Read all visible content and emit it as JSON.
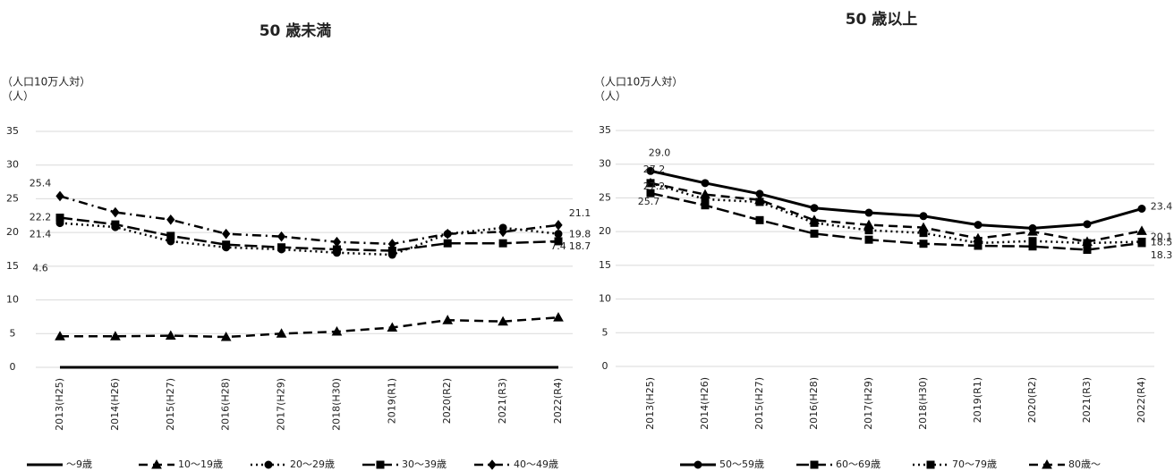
{
  "chart_data": [
    {
      "type": "line",
      "title": "50 歳未満",
      "y_label": [
        "（人口10万人対）",
        "（人）"
      ],
      "categories": [
        "2013(H25)",
        "2014(H26)",
        "2015(H27)",
        "2016(H28)",
        "2017(H29)",
        "2018(H30)",
        "2019(R1)",
        "2020(R2)",
        "2021(R3)",
        "2022(R4)"
      ],
      "ylim": [
        0,
        35
      ],
      "yticks": [
        0,
        5,
        10,
        15,
        20,
        25,
        30,
        35
      ],
      "grid": true,
      "legend": "bottom",
      "series": [
        {
          "name": "〜9歳",
          "color": "#000000",
          "line_style": "solid",
          "marker": "none",
          "values": [
            0,
            0,
            0,
            0,
            0,
            0,
            0,
            0,
            0,
            0
          ]
        },
        {
          "name": "10〜19歳",
          "color": "#000000",
          "line_style": "dashed",
          "marker": "triangle",
          "values": [
            4.6,
            4.6,
            4.7,
            4.5,
            5.0,
            5.3,
            5.9,
            7.0,
            6.8,
            7.4
          ],
          "value_labels": [
            "4.6",
            null,
            null,
            null,
            null,
            null,
            null,
            null,
            null,
            "7.4"
          ]
        },
        {
          "name": "20〜29歳",
          "color": "#000000",
          "line_style": "dotted",
          "marker": "circle",
          "values": [
            21.4,
            20.8,
            18.7,
            17.8,
            17.5,
            17.0,
            16.7,
            19.8,
            20.7,
            19.8
          ],
          "value_labels": [
            "21.4",
            null,
            null,
            null,
            null,
            null,
            null,
            null,
            null,
            "19.8"
          ]
        },
        {
          "name": "30〜39歳",
          "color": "#000000",
          "line_style": "long-dash",
          "marker": "square",
          "values": [
            22.2,
            21.2,
            19.5,
            18.2,
            17.8,
            17.5,
            17.3,
            18.4,
            18.4,
            18.7
          ],
          "value_labels": [
            "22.2",
            null,
            null,
            null,
            null,
            null,
            null,
            null,
            null,
            "18.7"
          ]
        },
        {
          "name": "40〜49歳",
          "color": "#000000",
          "line_style": "dash-dot",
          "marker": "diamond",
          "values": [
            25.4,
            23.0,
            21.9,
            19.8,
            19.4,
            18.6,
            18.3,
            19.8,
            20.1,
            21.1
          ],
          "value_labels": [
            "25.4",
            null,
            null,
            null,
            null,
            null,
            null,
            null,
            null,
            "21.1"
          ]
        }
      ]
    },
    {
      "type": "line",
      "title": "50 歳以上",
      "y_label": [
        "（人口10万人対）",
        "（人）"
      ],
      "categories": [
        "2013(H25)",
        "2014(H26)",
        "2015(H27)",
        "2016(H28)",
        "2017(H29)",
        "2018(H30)",
        "2019(R1)",
        "2020(R2)",
        "2021(R3)",
        "2022(R4)"
      ],
      "ylim": [
        0,
        35
      ],
      "yticks": [
        0,
        5,
        10,
        15,
        20,
        25,
        30,
        35
      ],
      "grid": true,
      "legend": "bottom",
      "series": [
        {
          "name": "50〜59歳",
          "color": "#000000",
          "line_style": "solid",
          "marker": "circle",
          "values": [
            29.0,
            27.2,
            25.6,
            23.5,
            22.8,
            22.3,
            21.0,
            20.5,
            21.1,
            23.4
          ],
          "value_labels": [
            "29.0",
            null,
            null,
            null,
            null,
            null,
            null,
            null,
            null,
            "23.4"
          ]
        },
        {
          "name": "60〜69歳",
          "color": "#000000",
          "line_style": "long-dash",
          "marker": "square",
          "values": [
            25.7,
            23.9,
            21.7,
            19.7,
            18.8,
            18.2,
            17.9,
            17.8,
            17.3,
            18.3
          ],
          "value_labels": [
            "25.7",
            null,
            null,
            null,
            null,
            null,
            null,
            null,
            null,
            "18.3"
          ]
        },
        {
          "name": "70〜79歳",
          "color": "#000000",
          "line_style": "dotted",
          "marker": "square",
          "values": [
            27.2,
            24.8,
            24.4,
            21.3,
            20.2,
            19.8,
            18.3,
            18.6,
            18.3,
            18.5
          ],
          "value_labels": [
            "27.2",
            null,
            null,
            null,
            null,
            null,
            null,
            null,
            null,
            "18.5"
          ]
        },
        {
          "name": "80歳〜",
          "color": "#000000",
          "line_style": "dashed",
          "marker": "triangle",
          "values": [
            27.2,
            25.5,
            24.7,
            21.7,
            21.0,
            20.6,
            19.0,
            20.0,
            18.5,
            20.1
          ],
          "value_labels": [
            "27.2",
            null,
            null,
            null,
            null,
            null,
            null,
            null,
            null,
            "20.1"
          ]
        }
      ]
    }
  ]
}
